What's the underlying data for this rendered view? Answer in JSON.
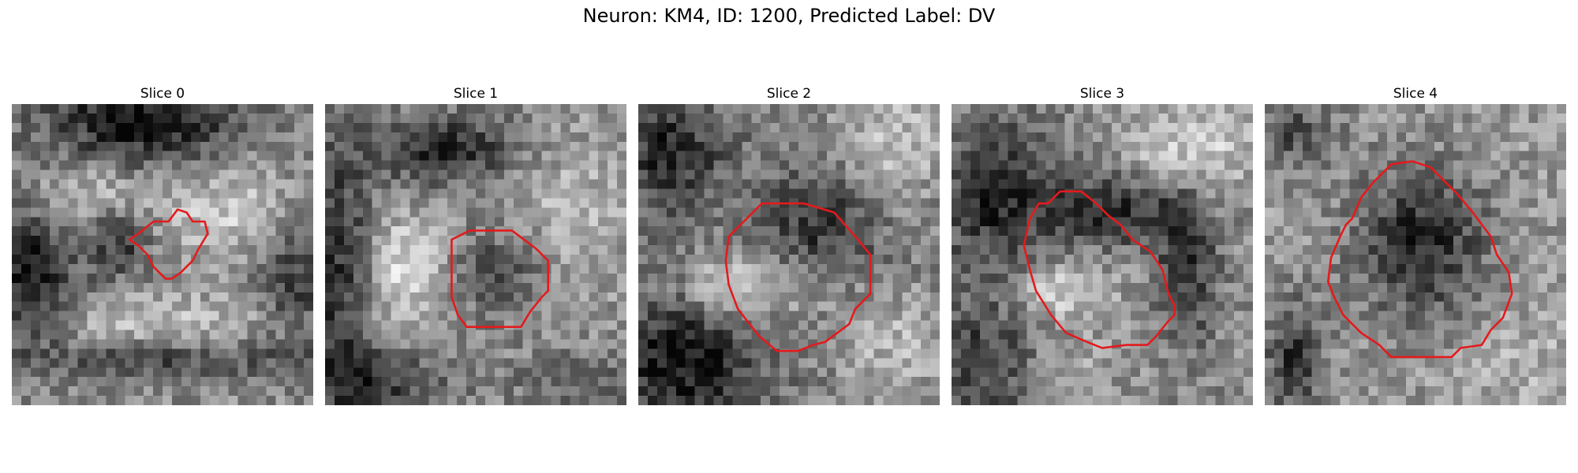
{
  "figure": {
    "title": "Neuron: KM4, ID: 1200, Predicted Label: DV"
  },
  "panels": [
    {
      "title": "Slice 0"
    },
    {
      "title": "Slice 1"
    },
    {
      "title": "Slice 2"
    },
    {
      "title": "Slice 3"
    },
    {
      "title": "Slice 4"
    }
  ],
  "colors": {
    "contour": "#e41a1c",
    "background": "#ffffff"
  }
}
